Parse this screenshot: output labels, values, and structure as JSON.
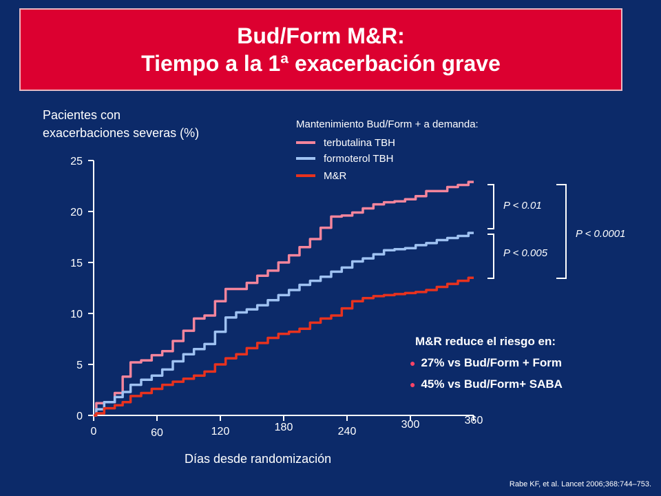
{
  "title": {
    "line1": "Bud/Form M&R:",
    "line2": "Tiempo a la 1ª exacerbación grave"
  },
  "ylabel": {
    "line1": "Pacientes con",
    "line2": "exacerbaciones severas (%)"
  },
  "xlabel": "Días desde randomización",
  "legend": {
    "title": "Mantenimiento Bud/Form + a demanda:",
    "items": [
      {
        "label": "terbutalina TBH",
        "color": "#f4859c"
      },
      {
        "label": "formoterol TBH",
        "color": "#9fc2f2"
      },
      {
        "label": "M&R",
        "color": "#e8321e"
      }
    ]
  },
  "pvalues": {
    "p1": "P < 0.01",
    "p2": "P < 0.005",
    "p3": "P < 0.0001"
  },
  "risk": {
    "title": "M&R reduce el riesgo en:",
    "items": [
      "27% vs Bud/Form + Form",
      "45% vs Bud/Form+ SABA"
    ]
  },
  "citation": "Rabe KF, et al. Lancet 2006;368:744–753.",
  "chart_data": {
    "type": "line",
    "xlim": [
      0,
      360
    ],
    "ylim": [
      0,
      25
    ],
    "x_ticks": [
      "0",
      "60",
      "120",
      "180",
      "240",
      "300",
      "360"
    ],
    "y_ticks": [
      "0",
      "5",
      "10",
      "15",
      "20",
      "25"
    ],
    "series": [
      {
        "name": "terbutalina TBH",
        "color": "#f4859c",
        "x": [
          0,
          5,
          15,
          25,
          30,
          40,
          50,
          60,
          70,
          80,
          90,
          100,
          110,
          120,
          130,
          140,
          150,
          160,
          170,
          180,
          190,
          200,
          210,
          220,
          230,
          240,
          250,
          260,
          270,
          280,
          290,
          300,
          310,
          320,
          330,
          340,
          350,
          360
        ],
        "y": [
          0,
          1.2,
          1.3,
          2.2,
          3.8,
          5.2,
          5.4,
          5.9,
          6.3,
          7.3,
          8.3,
          9.5,
          9.8,
          11.2,
          12.4,
          12.4,
          13.0,
          13.7,
          14.2,
          15.0,
          15.7,
          16.5,
          17.3,
          18.4,
          19.5,
          19.6,
          19.9,
          20.3,
          20.7,
          20.9,
          21.0,
          21.2,
          21.5,
          22.0,
          22.0,
          22.4,
          22.6,
          22.9
        ]
      },
      {
        "name": "formoterol TBH",
        "color": "#9fc2f2",
        "x": [
          0,
          5,
          15,
          25,
          30,
          40,
          50,
          60,
          70,
          80,
          90,
          100,
          110,
          120,
          130,
          140,
          150,
          160,
          170,
          180,
          190,
          200,
          210,
          220,
          230,
          240,
          250,
          260,
          270,
          280,
          290,
          300,
          310,
          320,
          330,
          340,
          350,
          360
        ],
        "y": [
          0,
          0.6,
          1.3,
          1.8,
          2.3,
          3.0,
          3.5,
          3.9,
          4.5,
          5.3,
          6.0,
          6.5,
          7.0,
          8.2,
          9.6,
          10.1,
          10.4,
          10.8,
          11.3,
          11.8,
          12.3,
          12.8,
          13.2,
          13.6,
          14.1,
          14.5,
          15.1,
          15.4,
          15.8,
          16.2,
          16.3,
          16.4,
          16.7,
          16.9,
          17.2,
          17.4,
          17.6,
          17.9
        ]
      },
      {
        "name": "M&R",
        "color": "#e8321e",
        "x": [
          0,
          5,
          15,
          25,
          30,
          40,
          50,
          60,
          70,
          80,
          90,
          100,
          110,
          120,
          130,
          140,
          150,
          160,
          170,
          180,
          190,
          200,
          210,
          220,
          230,
          240,
          250,
          260,
          270,
          280,
          290,
          300,
          310,
          320,
          330,
          340,
          350,
          360
        ],
        "y": [
          0,
          0.2,
          0.7,
          1.0,
          1.3,
          1.9,
          2.2,
          2.6,
          3.0,
          3.3,
          3.6,
          3.9,
          4.3,
          5.0,
          5.6,
          6.0,
          6.6,
          7.1,
          7.6,
          8.0,
          8.2,
          8.5,
          9.1,
          9.5,
          9.8,
          10.5,
          11.2,
          11.5,
          11.7,
          11.8,
          11.9,
          12.0,
          12.1,
          12.3,
          12.6,
          12.9,
          13.2,
          13.5
        ]
      }
    ]
  }
}
